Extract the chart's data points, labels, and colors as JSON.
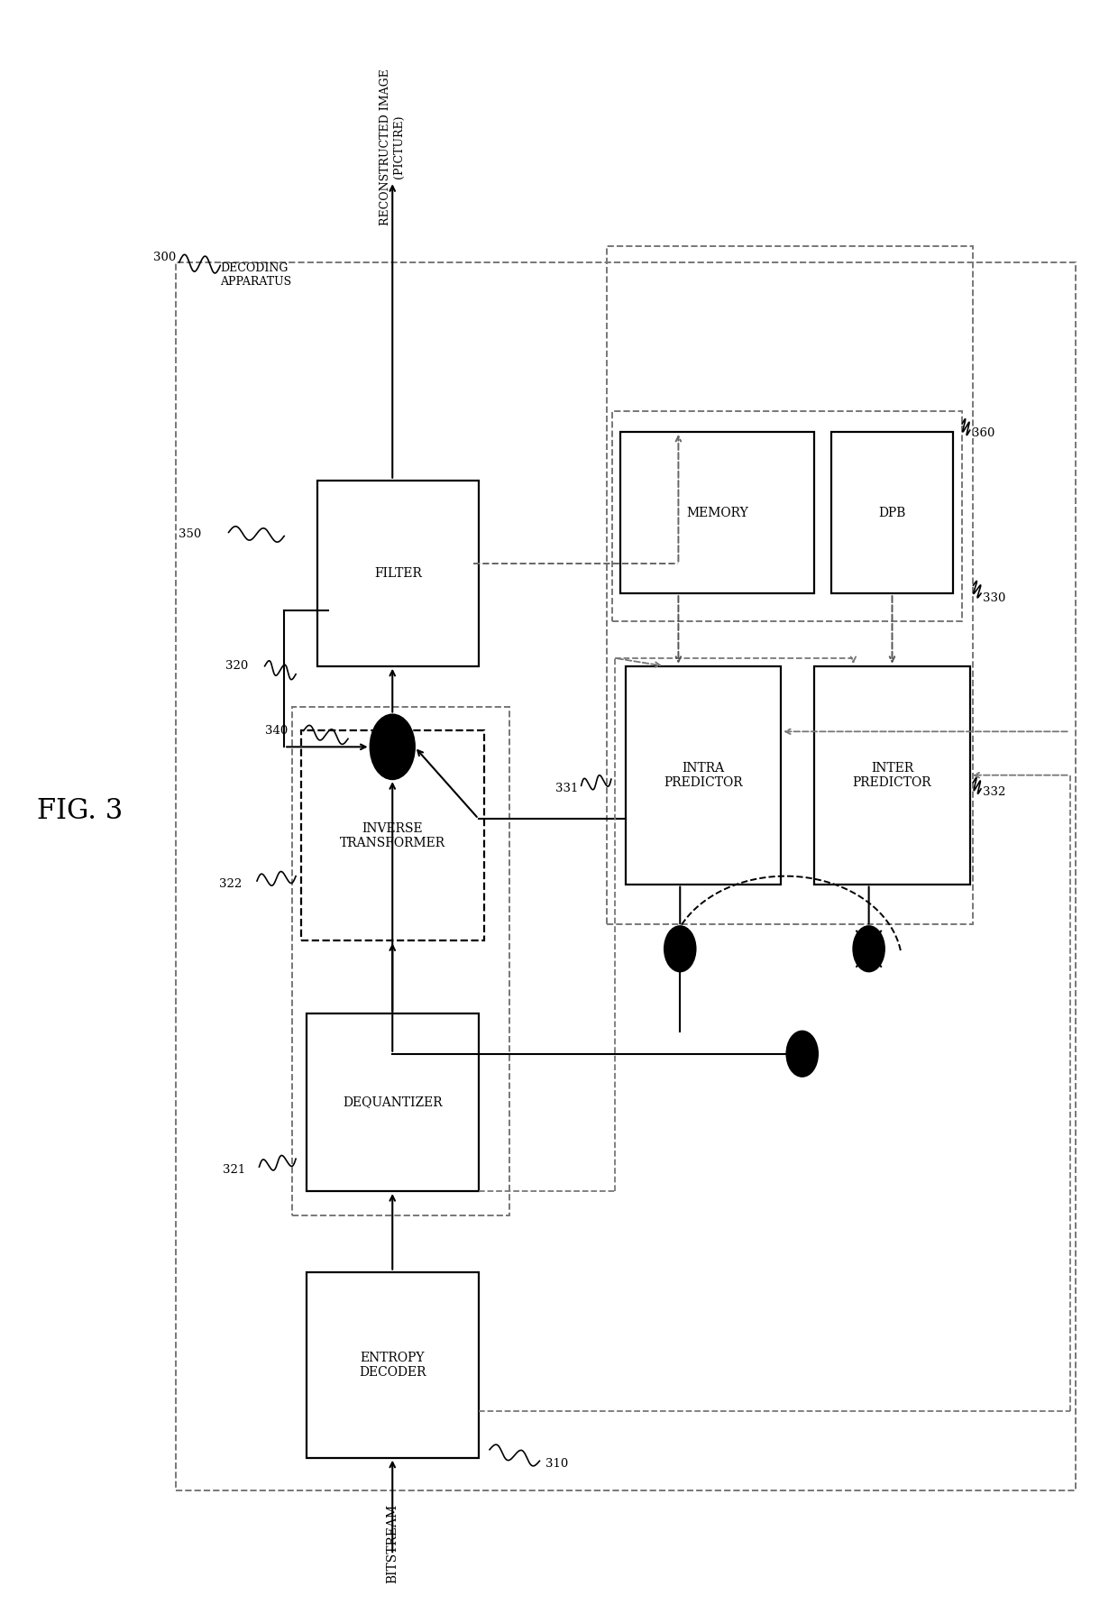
{
  "fig_label": "FIG. 3",
  "bg_color": "#ffffff",
  "boxes": {
    "entropy_decoder": {
      "label": "ENTROPY\nDECODER",
      "style": "solid"
    },
    "dequantizer": {
      "label": "DEQUANTIZER",
      "style": "solid"
    },
    "inv_transformer": {
      "label": "INVERSE\nTRANSFORMER",
      "style": "dashed"
    },
    "filter": {
      "label": "FILTER",
      "style": "solid"
    },
    "intra_predictor": {
      "label": "INTRA\nPREDICTOR",
      "style": "solid"
    },
    "inter_predictor": {
      "label": "INTER\nPREDICTOR",
      "style": "solid"
    },
    "memory": {
      "label": "MEMORY",
      "style": "solid"
    },
    "dpb": {
      "label": "DPB",
      "style": "solid"
    }
  },
  "ref_labels": {
    "300": "DECODING\nAPPARATUS",
    "310": "310",
    "320": "320",
    "321": "321",
    "322": "322",
    "330": "330",
    "331": "331",
    "332": "332",
    "340": "340",
    "350": "350",
    "360": "360"
  }
}
